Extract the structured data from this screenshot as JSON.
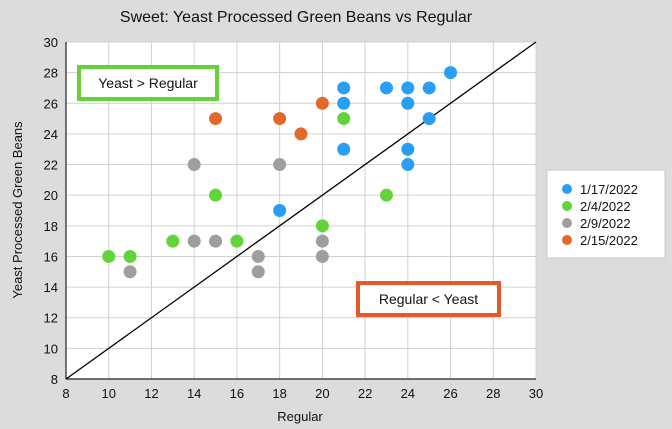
{
  "chart_data": {
    "type": "scatter",
    "title": "Sweet: Yeast Processed Green Beans vs Regular",
    "xlabel": "Regular",
    "ylabel": "Yeast Processed Green Beans",
    "xlim": [
      8,
      30
    ],
    "ylim": [
      8,
      30
    ],
    "xticks": [
      "8",
      "10",
      "12",
      "14",
      "16",
      "18",
      "20",
      "22",
      "24",
      "26",
      "28",
      "30"
    ],
    "yticks": [
      "8",
      "10",
      "12",
      "14",
      "16",
      "18",
      "20",
      "22",
      "24",
      "26",
      "28",
      "30"
    ],
    "grid": true,
    "legend_position": "right",
    "reference_line": {
      "from": [
        8,
        8
      ],
      "to": [
        30,
        30
      ],
      "color": "#000000"
    },
    "series": [
      {
        "name": "1/17/2022",
        "color": "#2a9df4",
        "points": [
          [
            18,
            19
          ],
          [
            21,
            23
          ],
          [
            21,
            26
          ],
          [
            21,
            27
          ],
          [
            23,
            27
          ],
          [
            24,
            22
          ],
          [
            24,
            23
          ],
          [
            24,
            26
          ],
          [
            24,
            27
          ],
          [
            25,
            25
          ],
          [
            25,
            27
          ],
          [
            26,
            28
          ]
        ]
      },
      {
        "name": "2/4/2022",
        "color": "#62d33a",
        "points": [
          [
            10,
            16
          ],
          [
            11,
            16
          ],
          [
            13,
            17
          ],
          [
            15,
            20
          ],
          [
            16,
            17
          ],
          [
            20,
            18
          ],
          [
            21,
            25
          ],
          [
            23,
            20
          ]
        ]
      },
      {
        "name": "2/9/2022",
        "color": "#9e9e9e",
        "points": [
          [
            11,
            15
          ],
          [
            14,
            22
          ],
          [
            14,
            17
          ],
          [
            15,
            17
          ],
          [
            17,
            16
          ],
          [
            17,
            15
          ],
          [
            18,
            22
          ],
          [
            20,
            17
          ],
          [
            20,
            16
          ]
        ]
      },
      {
        "name": "2/15/2022",
        "color": "#e2692a",
        "points": [
          [
            15,
            25
          ],
          [
            18,
            25
          ],
          [
            19,
            24
          ],
          [
            20,
            26
          ]
        ]
      }
    ],
    "annotations": [
      {
        "text": "Yeast > Regular",
        "border_color": "#66d23a"
      },
      {
        "text": "Regular < Yeast",
        "border_color": "#e5582a"
      }
    ]
  }
}
